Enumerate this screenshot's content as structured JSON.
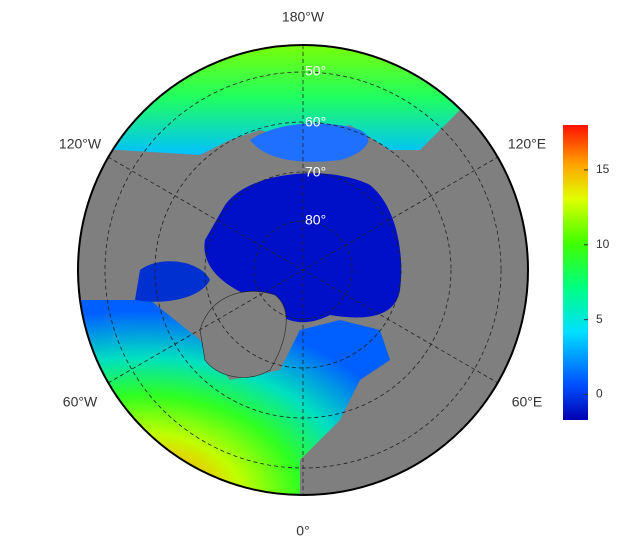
{
  "map": {
    "longitude_labels": [
      "180°W",
      "120°W",
      "120°E",
      "60°W",
      "60°E",
      "0°"
    ],
    "latitude_labels": [
      "50°",
      "60°",
      "70°",
      "80°"
    ],
    "colorbar": {
      "lim": [
        -1.7,
        18
      ],
      "ticks": [
        0,
        5,
        10,
        15
      ]
    }
  }
}
